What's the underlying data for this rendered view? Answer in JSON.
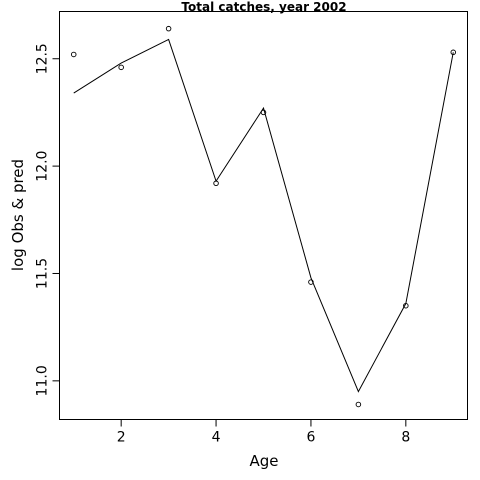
{
  "chart_data": {
    "type": "line",
    "title": "Total catches, year 2002",
    "xlabel": "Age",
    "ylabel": "log Obs & pred",
    "xlim": [
      0.7,
      9.3
    ],
    "ylim": [
      10.82,
      12.72
    ],
    "x_ticks": [
      2,
      4,
      6,
      8
    ],
    "y_ticks": [
      11.0,
      11.5,
      12.0,
      12.5
    ],
    "x_tick_labels": [
      "2",
      "4",
      "6",
      "8"
    ],
    "y_tick_labels": [
      "11.0",
      "11.5",
      "12.0",
      "12.5"
    ],
    "grid": false,
    "series": [
      {
        "kind": "points",
        "x": [
          1,
          2,
          3,
          4,
          5,
          6,
          7,
          8,
          9
        ],
        "y": [
          12.52,
          12.46,
          12.64,
          11.92,
          12.25,
          11.46,
          10.89,
          11.35,
          12.53
        ]
      },
      {
        "kind": "line",
        "x": [
          1,
          2,
          3,
          4,
          5,
          6,
          7,
          8,
          9
        ],
        "y": [
          12.34,
          12.48,
          12.59,
          11.93,
          12.27,
          11.48,
          10.95,
          11.36,
          12.53
        ]
      }
    ]
  }
}
